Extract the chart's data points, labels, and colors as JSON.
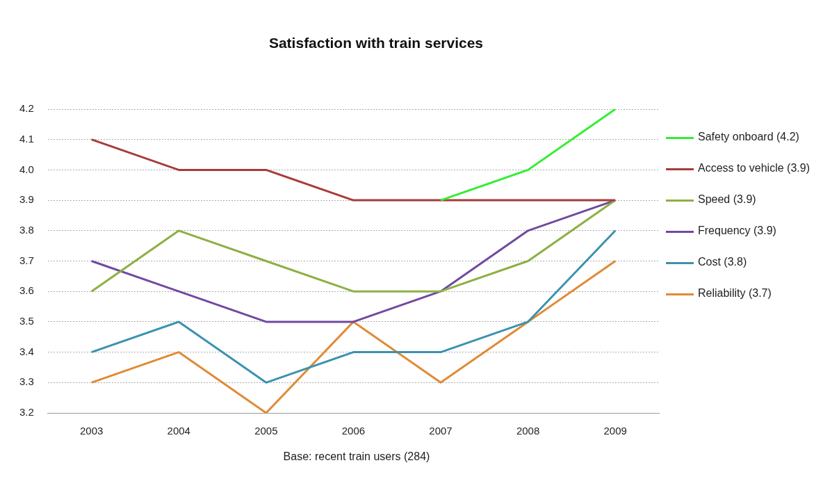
{
  "chart_data": {
    "type": "line",
    "title": "Satisfaction with train services",
    "categories": [
      "2003",
      "2004",
      "2005",
      "2006",
      "2007",
      "2008",
      "2009"
    ],
    "series": [
      {
        "name": "Safety onboard (4.2)",
        "color": "#33ee33",
        "values": [
          null,
          null,
          null,
          null,
          3.9,
          4.0,
          4.2
        ]
      },
      {
        "name": "Access to vehicle (3.9)",
        "color": "#a83a3a",
        "values": [
          4.1,
          4.0,
          4.0,
          3.9,
          3.9,
          3.9,
          3.9
        ]
      },
      {
        "name": "Speed (3.9)",
        "color": "#8db043",
        "values": [
          3.6,
          3.8,
          3.7,
          3.6,
          3.6,
          3.7,
          3.9
        ]
      },
      {
        "name": "Frequency (3.9)",
        "color": "#7048a0",
        "values": [
          3.7,
          3.6,
          3.5,
          3.5,
          3.6,
          3.8,
          3.9
        ]
      },
      {
        "name": "Cost (3.8)",
        "color": "#3a92b0",
        "values": [
          3.4,
          3.5,
          3.3,
          3.4,
          3.4,
          3.5,
          3.8
        ]
      },
      {
        "name": "Reliability (3.7)",
        "color": "#e08a35",
        "values": [
          3.3,
          3.4,
          3.2,
          3.5,
          3.3,
          3.5,
          3.7
        ]
      }
    ],
    "ylim": [
      3.2,
      4.2
    ],
    "yticks": [
      3.2,
      3.3,
      3.4,
      3.5,
      3.6,
      3.7,
      3.8,
      3.9,
      {
        "value": 4.0,
        "label": "4.0"
      },
      4.1,
      4.2
    ],
    "grid": "y",
    "legend": "right",
    "marker": "none",
    "line_style": "solid",
    "annotations": [
      "Base: recent train users (284)"
    ]
  }
}
